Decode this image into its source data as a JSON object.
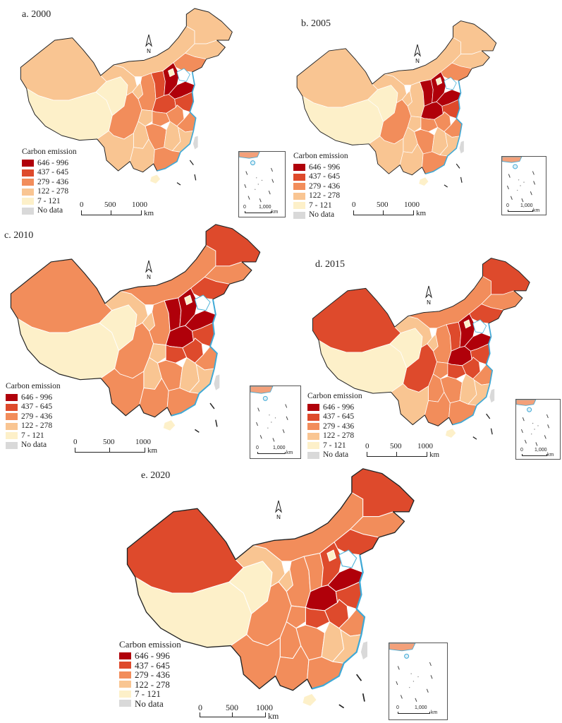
{
  "legend": {
    "title": "Carbon emission",
    "classes": [
      {
        "label": "646 - 996",
        "color": "#b0000a"
      },
      {
        "label": "437 - 645",
        "color": "#de4a2c"
      },
      {
        "label": "279 - 436",
        "color": "#f28d5b"
      },
      {
        "label": "122 - 278",
        "color": "#f9c592"
      },
      {
        "label": "7 - 121",
        "color": "#fdf0c9"
      },
      {
        "label": "No data",
        "color": "#d9d9d9"
      }
    ]
  },
  "scale": {
    "l0": "0",
    "l1": "500",
    "l2": "1000",
    "unit": "km"
  },
  "inset_scale": {
    "l0": "0",
    "l1": "1,000",
    "unit": "km"
  },
  "north_label": "N",
  "panels": [
    {
      "title": "a. 2000"
    },
    {
      "title": "b. 2005"
    },
    {
      "title": "c. 2010"
    },
    {
      "title": "d. 2015"
    },
    {
      "title": "e. 2020"
    }
  ],
  "region_classes": {
    "a": {
      "xinjiang": 3,
      "tibet": 4,
      "qinghai": 4,
      "inner_mongolia": 3,
      "heilongjiang": 3,
      "jilin": 3,
      "liaoning": 2,
      "beijing": 4,
      "hebei": 0,
      "shandong": 0,
      "shanxi": 1,
      "henan": 1,
      "jiangsu": 1,
      "shaanxi": 2,
      "gansu": 3,
      "ningxia": 3,
      "sichuan": 2,
      "chongqing": 3,
      "hubei": 2,
      "anhui": 2,
      "zhejiang": 2,
      "yunnan": 3,
      "guizhou": 3,
      "hunan": 2,
      "jiangxi": 3,
      "guangxi": 3,
      "guangdong": 2,
      "fujian": 3,
      "hainan": 4,
      "taiwan": 5
    },
    "b": {
      "xinjiang": 3,
      "tibet": 4,
      "qinghai": 4,
      "inner_mongolia": 3,
      "heilongjiang": 3,
      "jilin": 3,
      "liaoning": 2,
      "beijing": 4,
      "hebei": 0,
      "shandong": 0,
      "shanxi": 0,
      "henan": 0,
      "jiangsu": 1,
      "shaanxi": 3,
      "gansu": 3,
      "ningxia": 3,
      "sichuan": 2,
      "chongqing": 3,
      "hubei": 2,
      "anhui": 2,
      "zhejiang": 2,
      "yunnan": 3,
      "guizhou": 3,
      "hunan": 2,
      "jiangxi": 3,
      "guangxi": 3,
      "guangdong": 2,
      "fujian": 3,
      "hainan": 4,
      "taiwan": 5
    },
    "c": {
      "xinjiang": 2,
      "tibet": 4,
      "qinghai": 4,
      "inner_mongolia": 2,
      "heilongjiang": 1,
      "jilin": 2,
      "liaoning": 1,
      "beijing": 4,
      "hebei": 0,
      "shandong": 0,
      "shanxi": 0,
      "henan": 0,
      "jiangsu": 1,
      "shaanxi": 2,
      "gansu": 3,
      "ningxia": 3,
      "sichuan": 2,
      "chongqing": 3,
      "hubei": 1,
      "anhui": 1,
      "zhejiang": 2,
      "yunnan": 2,
      "guizhou": 3,
      "hunan": 2,
      "jiangxi": 3,
      "guangxi": 2,
      "guangdong": 2,
      "fujian": 3,
      "hainan": 4,
      "taiwan": 5
    },
    "d": {
      "xinjiang": 1,
      "tibet": 4,
      "qinghai": 4,
      "inner_mongolia": 2,
      "heilongjiang": 1,
      "jilin": 2,
      "liaoning": 1,
      "beijing": 4,
      "hebei": 0,
      "shandong": 0,
      "shanxi": 1,
      "henan": 0,
      "jiangsu": 1,
      "shaanxi": 2,
      "gansu": 3,
      "ningxia": 3,
      "sichuan": 1,
      "chongqing": 2,
      "hubei": 1,
      "anhui": 1,
      "zhejiang": 2,
      "yunnan": 3,
      "guizhou": 2,
      "hunan": 2,
      "jiangxi": 3,
      "guangxi": 2,
      "guangdong": 2,
      "fujian": 3,
      "hainan": 4,
      "taiwan": 5
    },
    "e": {
      "xinjiang": 1,
      "tibet": 4,
      "qinghai": 4,
      "inner_mongolia": 2,
      "heilongjiang": 1,
      "jilin": 2,
      "liaoning": 1,
      "beijing": 4,
      "hebei": 1,
      "shandong": 0,
      "shanxi": 2,
      "henan": 0,
      "jiangsu": 1,
      "shaanxi": 2,
      "gansu": 3,
      "ningxia": 3,
      "sichuan": 2,
      "chongqing": 2,
      "hubei": 1,
      "anhui": 1,
      "zhejiang": 2,
      "yunnan": 2,
      "guizhou": 2,
      "hunan": 2,
      "jiangxi": 3,
      "guangxi": 2,
      "guangdong": 2,
      "fujian": 3,
      "hainan": 4,
      "taiwan": 5
    }
  }
}
